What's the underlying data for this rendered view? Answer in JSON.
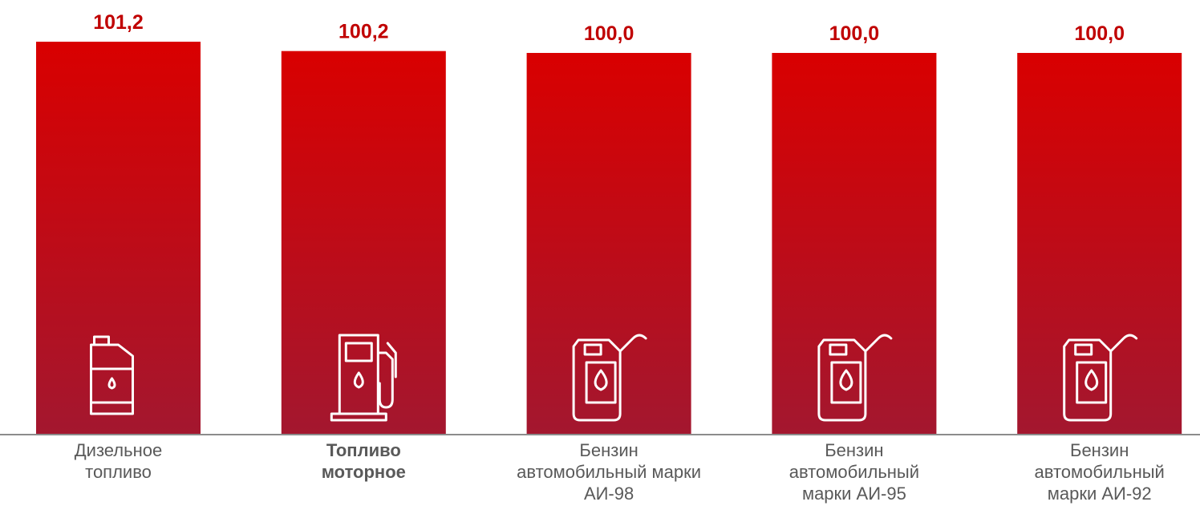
{
  "chart_data": {
    "type": "bar",
    "categories": [
      "Дизельное\nтопливо",
      "Топливо\nмоторное",
      "Бензин\nавтомобильный марки\nАИ-98",
      "Бензин\nавтомобильный\nмарки АИ-95",
      "Бензин\nавтомобильный\nмарки АИ-92"
    ],
    "values": [
      101.2,
      100.2,
      100.0,
      100.0,
      100.0
    ],
    "value_labels": [
      "101,2",
      "100,2",
      "100,0",
      "100,0",
      "100,0"
    ],
    "color": "#c8102e",
    "ylim": [
      59.2,
      101.2
    ]
  }
}
